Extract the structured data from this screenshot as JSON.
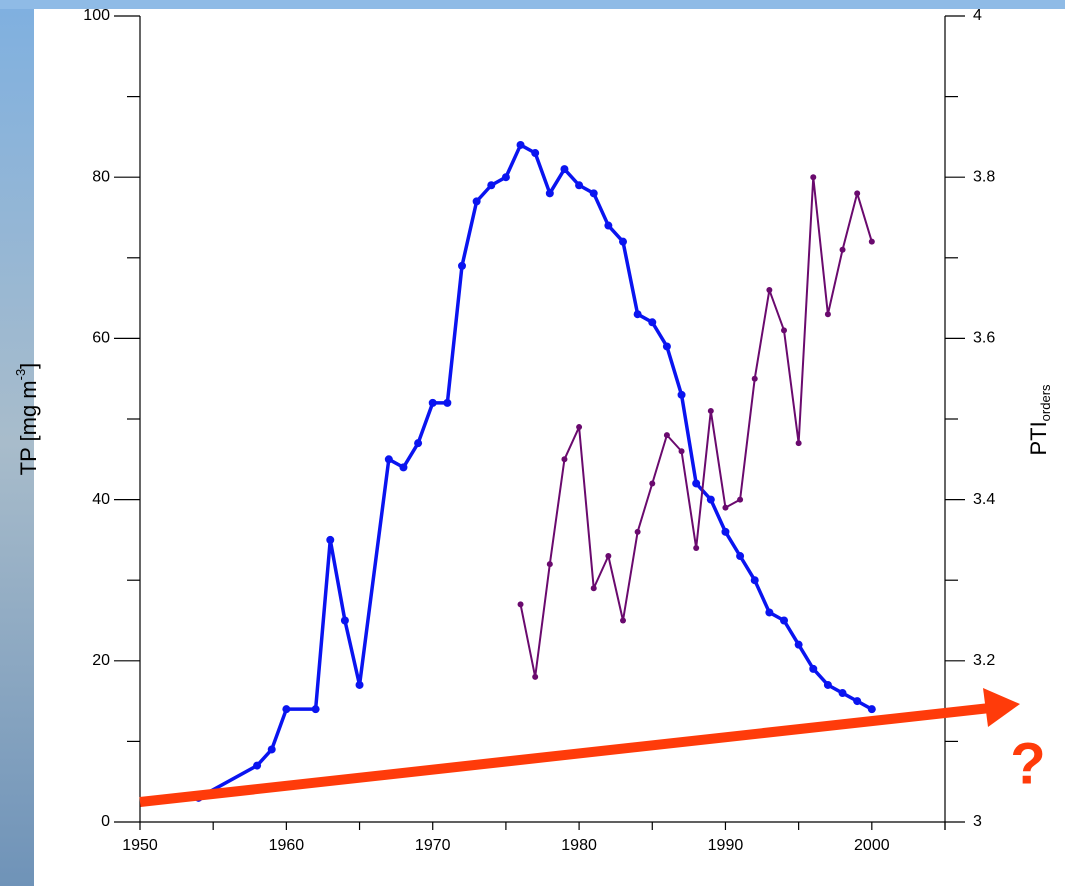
{
  "chart_data": {
    "type": "line",
    "x": [
      1954,
      1958,
      1959,
      1960,
      1962,
      1963,
      1964,
      1965,
      1967,
      1968,
      1969,
      1970,
      1971,
      1972,
      1973,
      1974,
      1975,
      1976,
      1977,
      1978,
      1979,
      1980,
      1981,
      1982,
      1983,
      1984,
      1985,
      1986,
      1987,
      1988,
      1989,
      1990,
      1991,
      1992,
      1993,
      1994,
      1995,
      1996,
      1997,
      1998,
      1999,
      2000
    ],
    "series": [
      {
        "name": "TP",
        "color": "#0a14f0",
        "axis": "y",
        "values": [
          3,
          7,
          9,
          14,
          14,
          35,
          25,
          17,
          45,
          44,
          47,
          52,
          52,
          69,
          77,
          79,
          80,
          84,
          83,
          78,
          81,
          79,
          78,
          74,
          72,
          63,
          62,
          59,
          53,
          42,
          40,
          36,
          33,
          30,
          26,
          25,
          22,
          19,
          17,
          16,
          15,
          14
        ]
      },
      {
        "name": "PTI",
        "color": "#6a0a6e",
        "axis": "y2",
        "values": [
          null,
          null,
          null,
          null,
          null,
          null,
          null,
          null,
          null,
          null,
          null,
          null,
          null,
          null,
          null,
          null,
          null,
          3.27,
          3.18,
          3.32,
          3.45,
          3.49,
          3.29,
          3.33,
          3.25,
          3.36,
          3.42,
          3.48,
          3.46,
          3.34,
          3.51,
          3.39,
          3.4,
          3.55,
          3.66,
          3.61,
          3.47,
          3.8,
          3.63,
          3.71,
          3.78,
          3.72
        ]
      }
    ],
    "xlim": [
      1950,
      2005
    ],
    "xticks": [
      1950,
      1960,
      1970,
      1980,
      1990,
      2000
    ],
    "ylim": [
      0,
      100
    ],
    "yticks": [
      0,
      20,
      40,
      60,
      80,
      100
    ],
    "y2lim": [
      3,
      4
    ],
    "y2ticks": [
      3,
      {
        "value": 3.2,
        "label": "3.2"
      },
      {
        "value": 3.4,
        "label": "3.4"
      },
      {
        "value": 3.6,
        "label": "3.6"
      },
      {
        "value": 3.8,
        "label": "3.8"
      },
      4
    ],
    "y_label": {
      "text": "TP [mg m",
      "sup": "-3",
      "end": "]"
    },
    "y2_label": {
      "text": "PTI",
      "sub": "orders"
    },
    "annotation": "?"
  }
}
